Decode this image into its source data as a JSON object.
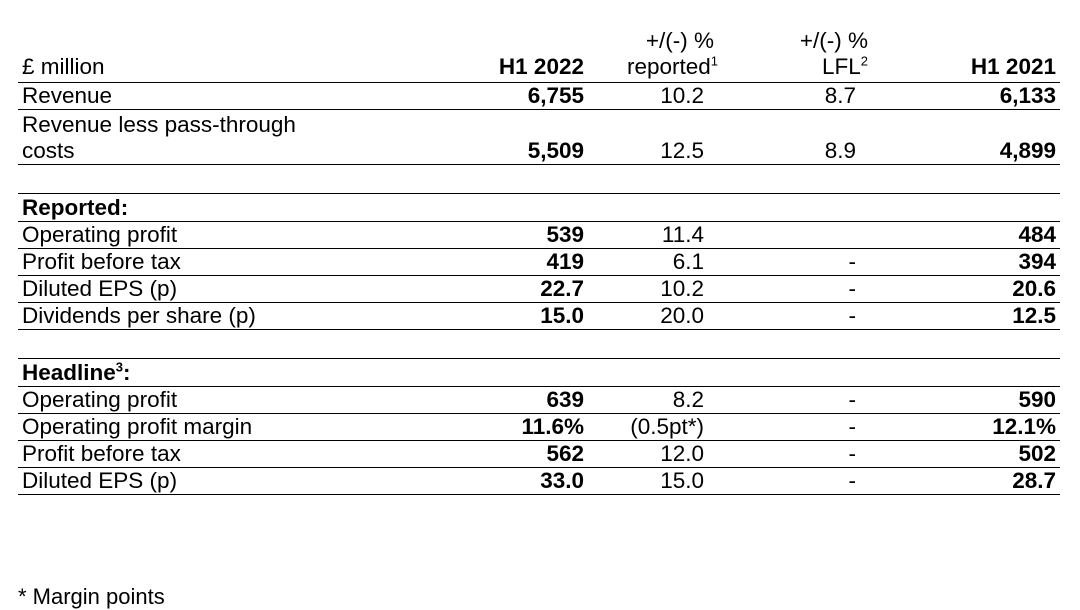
{
  "table": {
    "headers": {
      "label": "£ million",
      "h1_2022": "H1 2022",
      "reported_top": "+/(-) %",
      "reported_bottom": "reported",
      "reported_sup": "1",
      "lfl_top": "+/(-) %",
      "lfl_bottom": "LFL",
      "lfl_sup": "2",
      "h1_2021": "H1 2021"
    },
    "top_rows": [
      {
        "label": "Revenue",
        "h1_2022": "6,755",
        "reported": "10.2",
        "lfl": "8.7",
        "h1_2021": "6,133"
      },
      {
        "label_line1": "Revenue less pass-through",
        "label_line2": "costs",
        "h1_2022": "5,509",
        "reported": "12.5",
        "lfl": "8.9",
        "h1_2021": "4,899"
      }
    ],
    "reported_section": {
      "title": "Reported:",
      "rows": [
        {
          "label": "Operating profit",
          "h1_2022": "539",
          "reported": "11.4",
          "lfl": "",
          "h1_2021": "484"
        },
        {
          "label": "Profit before tax",
          "h1_2022": "419",
          "reported": "6.1",
          "lfl": "-",
          "h1_2021": "394"
        },
        {
          "label": "Diluted EPS (p)",
          "h1_2022": "22.7",
          "reported": "10.2",
          "lfl": "-",
          "h1_2021": "20.6"
        },
        {
          "label": "Dividends per share (p)",
          "h1_2022": "15.0",
          "reported": "20.0",
          "lfl": "-",
          "h1_2021": "12.5"
        }
      ]
    },
    "headline_section": {
      "title": "Headline",
      "title_sup": "3",
      "title_suffix": ":",
      "rows": [
        {
          "label": "Operating profit",
          "h1_2022": "639",
          "reported": "8.2",
          "lfl": "-",
          "h1_2021": "590"
        },
        {
          "label": "Operating profit margin",
          "h1_2022": "11.6%",
          "reported": "(0.5pt*)",
          "lfl": "-",
          "h1_2021": "12.1%"
        },
        {
          "label": "Profit before tax",
          "h1_2022": "562",
          "reported": "12.0",
          "lfl": "-",
          "h1_2021": "502"
        },
        {
          "label": "Diluted EPS (p)",
          "h1_2022": "33.0",
          "reported": "15.0",
          "lfl": "-",
          "h1_2021": "28.7"
        }
      ]
    }
  },
  "footnote": "* Margin points"
}
